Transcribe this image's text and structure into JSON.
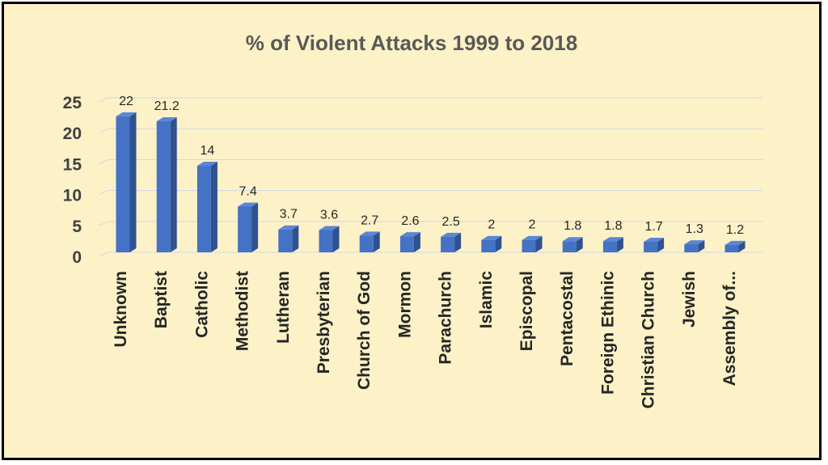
{
  "chart_data": {
    "type": "bar",
    "title": "% of Violent Attacks 1999 to 2018",
    "categories": [
      "Unknown",
      "Baptist",
      "Catholic",
      "Methodist",
      "Lutheran",
      "Presbyterian",
      "Church of God",
      "Mormon",
      "Parachurch",
      "Islamic",
      "Episcopal",
      "Pentacostal",
      "Foreign Ethinic",
      "Christian Church",
      "Jewish",
      "Assembly of..."
    ],
    "values": [
      22,
      21.2,
      14,
      7.4,
      3.7,
      3.6,
      2.7,
      2.6,
      2.5,
      2,
      2,
      1.8,
      1.8,
      1.7,
      1.3,
      1.2
    ],
    "data_labels": [
      "22",
      "21.2",
      "14",
      "7.4",
      "3.7",
      "3.6",
      "2.7",
      "2.6",
      "2.5",
      "2",
      "2",
      "1.8",
      "1.8",
      "1.7",
      "1.3",
      "1.2"
    ],
    "yticks": [
      "0",
      "5",
      "10",
      "15",
      "20",
      "25"
    ],
    "ylim": [
      0,
      25
    ],
    "xlabel": "",
    "ylabel": "",
    "grid": true,
    "legend": "none",
    "style": "3d-column",
    "colors": {
      "bar_front": "#4472c4",
      "bar_side": "#2f528f",
      "bar_top": "#5b86d6",
      "background": "#fdf1c7",
      "grid": "#d0d7e5"
    }
  }
}
